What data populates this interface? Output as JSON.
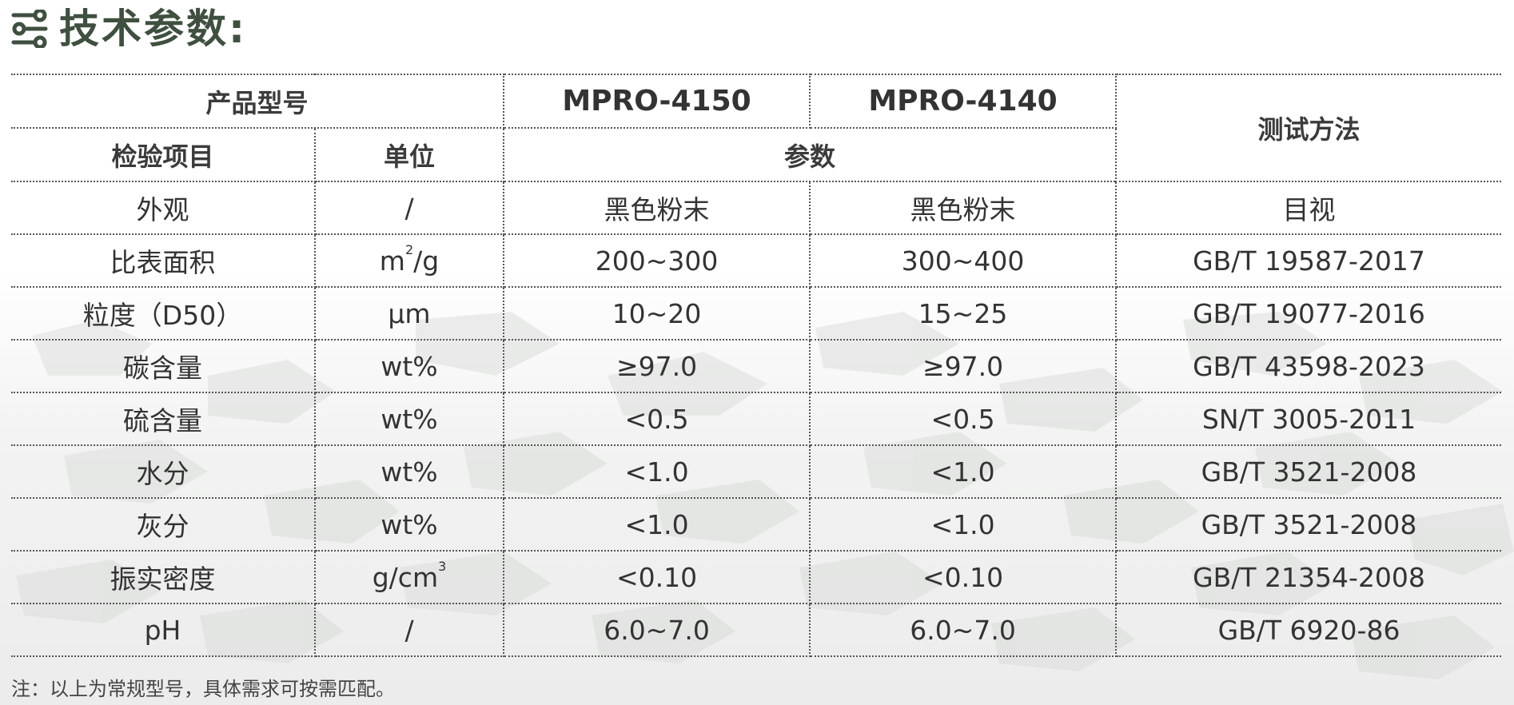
{
  "header": {
    "icon": "sliders-icon",
    "title": "技术参数:"
  },
  "colors": {
    "title": "#3f4f40",
    "text": "#333333",
    "border": "#555555"
  },
  "table": {
    "col_model_label": "产品型号",
    "models": [
      "MPRO-4150",
      "MPRO-4140"
    ],
    "col_method": "测试方法",
    "col_item": "检验项目",
    "col_unit": "单位",
    "col_params": "参数",
    "rows": [
      {
        "item": "外观",
        "unit": "/",
        "v1": "黑色粉末",
        "v2": "黑色粉末",
        "method": "目视"
      },
      {
        "item": "比表面积",
        "unit": "m",
        "unit_sup": "2",
        "unit_after": "/g",
        "v1": "200~300",
        "v2": "300~400",
        "method": "GB/T 19587-2017"
      },
      {
        "item": "粒度（D50）",
        "unit": "μm",
        "v1": "10~20",
        "v2": "15~25",
        "method": "GB/T 19077-2016"
      },
      {
        "item": "碳含量",
        "unit": "wt%",
        "v1": "≥97.0",
        "v2": "≥97.0",
        "method": "GB/T 43598-2023"
      },
      {
        "item": "硫含量",
        "unit": "wt%",
        "v1": "<0.5",
        "v2": "<0.5",
        "method": "SN/T 3005-2011"
      },
      {
        "item": "水分",
        "unit": "wt%",
        "v1": "<1.0",
        "v2": "<1.0",
        "method": "GB/T 3521-2008"
      },
      {
        "item": "灰分",
        "unit": "wt%",
        "v1": "<1.0",
        "v2": "<1.0",
        "method": "GB/T 3521-2008"
      },
      {
        "item": "振实密度",
        "unit": "g/cm",
        "unit_sup": "3",
        "v1": "<0.10",
        "v2": "<0.10",
        "method": "GB/T 21354-2008"
      },
      {
        "item": "pH",
        "unit": "/",
        "v1": "6.0~7.0",
        "v2": "6.0~7.0",
        "method": "GB/T 6920-86"
      }
    ]
  },
  "note": "注：以上为常规型号，具体需求可按需匹配。"
}
